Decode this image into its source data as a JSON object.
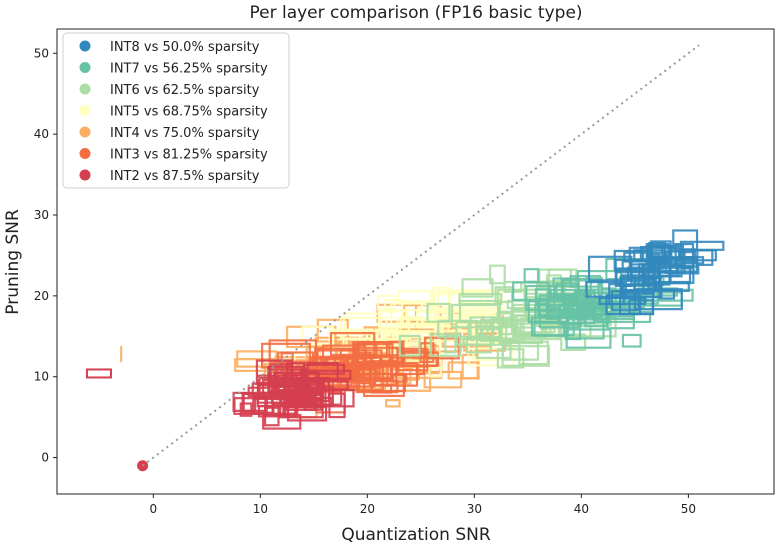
{
  "chart_data": {
    "type": "scatter",
    "title": "Per layer comparison (FP16 basic type)",
    "xlabel": "Quantization SNR",
    "ylabel": "Pruning SNR",
    "xlim": [
      -9,
      58
    ],
    "ylim": [
      -4.5,
      53
    ],
    "xticks": [
      0,
      10,
      20,
      30,
      40,
      50
    ],
    "yticks": [
      0,
      10,
      20,
      30,
      40,
      50
    ],
    "grid": false,
    "legend_position": "top-left",
    "reference_line": {
      "x": [
        -1,
        51
      ],
      "y": [
        -1,
        51
      ],
      "style": "dotted",
      "color": "#999999"
    },
    "series": [
      {
        "name": "INT8 vs 50.0% sparsity",
        "color": "#3288bd"
      },
      {
        "name": "INT7 vs 56.25% sparsity",
        "color": "#66c2a5"
      },
      {
        "name": "INT6 vs 62.5% sparsity",
        "color": "#abdda4"
      },
      {
        "name": "INT5 vs 68.75% sparsity",
        "color": "#ffffbf"
      },
      {
        "name": "INT4 vs 75.0% sparsity",
        "color": "#fdae61"
      },
      {
        "name": "INT3 vs 81.25% sparsity",
        "color": "#f46d43"
      },
      {
        "name": "INT2 vs 87.5% sparsity",
        "color": "#d53e4f"
      }
    ],
    "outlier_points": [
      {
        "series": "INT2 vs 87.5% sparsity",
        "x": -1,
        "y": -1
      }
    ]
  }
}
